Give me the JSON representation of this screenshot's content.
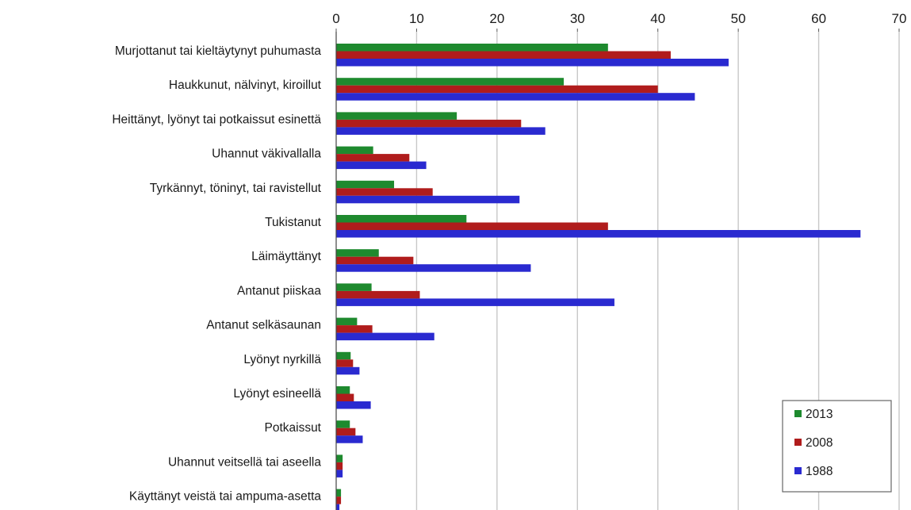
{
  "chart_data": {
    "type": "bar",
    "orientation": "horizontal",
    "categories": [
      "Murjottanut tai kieltäytynyt puhumasta",
      "Haukkunut, nälvinyt, kiroillut",
      "Heittänyt, lyönyt tai potkaissut esinettä",
      "Uhannut väkivallalla",
      "Tyrkännyt, töninyt, tai ravistellut",
      "Tukistanut",
      "Läimäyttänyt",
      "Antanut piiskaa",
      "Antanut selkäsaunan",
      "Lyönyt nyrkillä",
      "Lyönyt esineellä",
      "Potkaissut",
      "Uhannut veitsellä tai aseella",
      "Käyttänyt veistä tai ampuma-asetta"
    ],
    "series": [
      {
        "name": "2013",
        "color": "#1e8a2e",
        "values": [
          33.8,
          28.3,
          15.0,
          4.6,
          7.2,
          16.2,
          5.3,
          4.4,
          2.6,
          1.8,
          1.7,
          1.7,
          0.8,
          0.6
        ]
      },
      {
        "name": "2008",
        "color": "#b01c1c",
        "values": [
          41.6,
          40.0,
          23.0,
          9.1,
          12.0,
          33.8,
          9.6,
          10.4,
          4.5,
          2.1,
          2.2,
          2.4,
          0.8,
          0.6
        ]
      },
      {
        "name": "1988",
        "color": "#2a2ad0",
        "values": [
          48.8,
          44.6,
          26.0,
          11.2,
          22.8,
          65.2,
          24.2,
          34.6,
          12.2,
          2.9,
          4.3,
          3.3,
          0.8,
          0.4
        ]
      }
    ],
    "xticks": [
      "0",
      "10",
      "20",
      "30",
      "40",
      "50",
      "60",
      "70"
    ],
    "xlim": [
      0,
      70
    ],
    "xaxis_position": "top",
    "grid": "vertical",
    "legend_position": "bottom-right",
    "legend_order": [
      "2013",
      "2008",
      "1988"
    ],
    "title": "",
    "xlabel": "",
    "ylabel": ""
  }
}
